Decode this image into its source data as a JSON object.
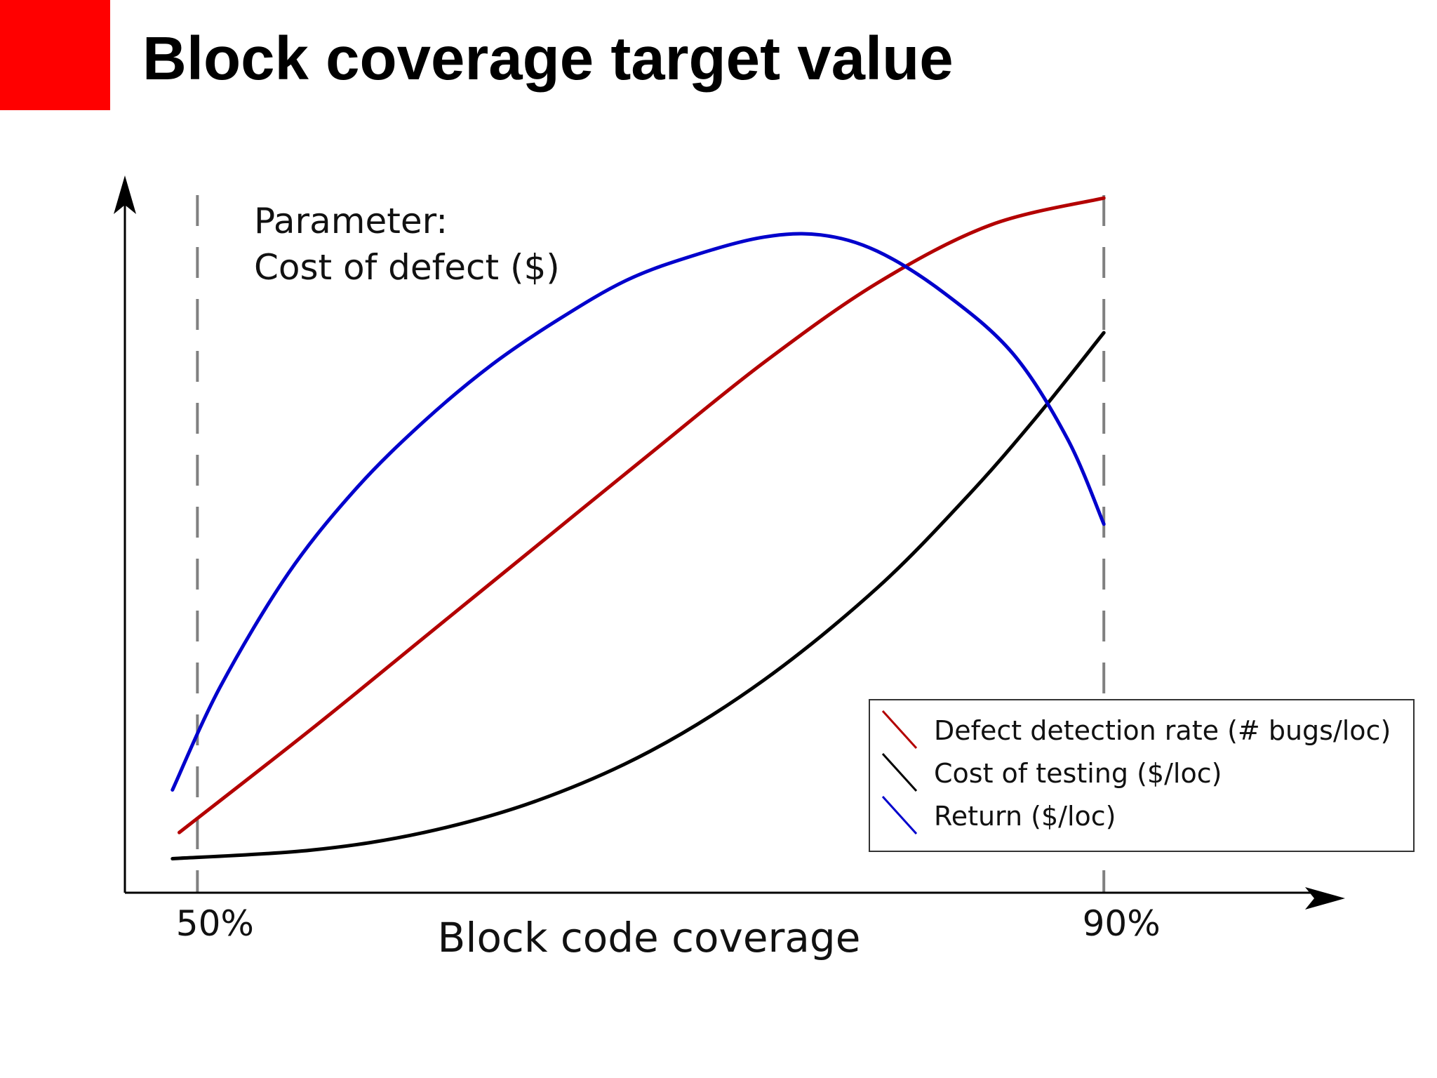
{
  "slide": {
    "title": "Block coverage target value",
    "accent_color": "#ff0000"
  },
  "chart_data": {
    "type": "line",
    "xlabel": "Block code coverage",
    "ylabel": "",
    "x_ticks": [
      {
        "value": 50,
        "label": "50%"
      },
      {
        "value": 90,
        "label": "90%"
      }
    ],
    "xlim": [
      46.8,
      99.5
    ],
    "ylim": [
      0,
      100
    ],
    "y_ticks": false,
    "grid": false,
    "reference_lines": [
      {
        "x": 50,
        "style": "dashed",
        "color": "#808080"
      },
      {
        "x": 90,
        "style": "dashed",
        "color": "#808080"
      }
    ],
    "annotation": {
      "lines": [
        "Parameter:",
        "Cost of defect ($)"
      ],
      "placement": "top-left"
    },
    "legend": {
      "placement": "bottom-right"
    },
    "series": [
      {
        "name": "Defect detection rate (# bugs/loc)",
        "color": "#b30000",
        "points": [
          [
            49.2,
            8.5
          ],
          [
            55,
            23
          ],
          [
            60,
            36
          ],
          [
            65,
            49
          ],
          [
            70,
            62
          ],
          [
            75,
            74.8
          ],
          [
            80,
            86
          ],
          [
            85,
            94.2
          ],
          [
            90,
            98
          ]
        ]
      },
      {
        "name": "Cost of testing ($/loc)",
        "color": "#000000",
        "points": [
          [
            48.9,
            4.8
          ],
          [
            55,
            6
          ],
          [
            60,
            8.5
          ],
          [
            65,
            13
          ],
          [
            70,
            20
          ],
          [
            75,
            30
          ],
          [
            80,
            43
          ],
          [
            84,
            56
          ],
          [
            87,
            67
          ],
          [
            90,
            79
          ]
        ]
      },
      {
        "name": "Return ($/loc)",
        "color": "#0000cc",
        "points": [
          [
            48.9,
            14.5
          ],
          [
            51,
            29
          ],
          [
            54,
            45
          ],
          [
            57,
            57
          ],
          [
            60,
            66.5
          ],
          [
            63,
            74.5
          ],
          [
            66,
            81
          ],
          [
            69,
            86.5
          ],
          [
            72,
            90
          ],
          [
            75,
            92.5
          ],
          [
            77.5,
            92.8
          ],
          [
            80,
            90.5
          ],
          [
            83,
            84.5
          ],
          [
            86,
            76
          ],
          [
            88.4,
            64
          ],
          [
            90,
            52
          ]
        ]
      }
    ]
  }
}
